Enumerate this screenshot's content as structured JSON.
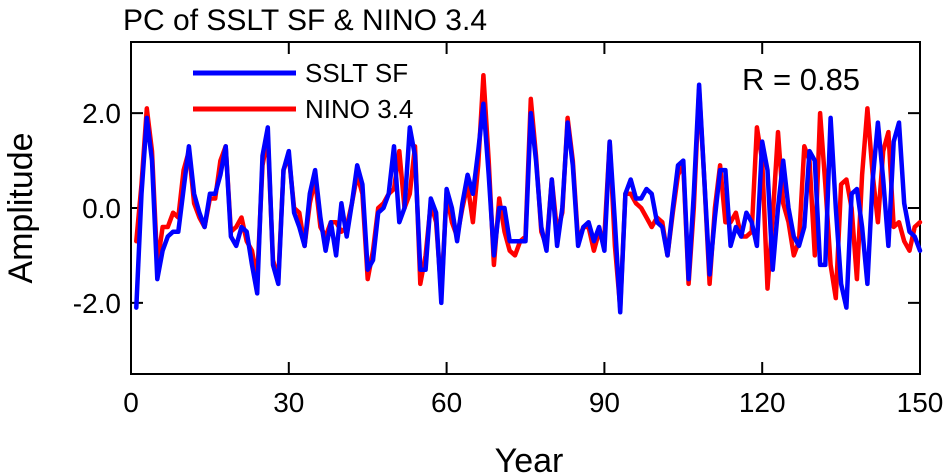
{
  "chart_data": {
    "type": "line",
    "title": "PC of SSLT SF & NINO 3.4",
    "xlabel": "Year",
    "ylabel": "Amplitude",
    "xlim": [
      0,
      150
    ],
    "ylim": [
      -3.5,
      3.5
    ],
    "xticks": [
      0,
      30,
      60,
      90,
      120,
      150
    ],
    "xtick_labels": [
      "0",
      "30",
      "60",
      "90",
      "120",
      "150"
    ],
    "yticks": [
      -2,
      0,
      2
    ],
    "ytick_labels": [
      "-2.0",
      "0.0",
      "2.0"
    ],
    "grid": false,
    "legend_position": "top-left",
    "annotation": "R = 0.85",
    "x": [
      1,
      2,
      3,
      4,
      5,
      6,
      7,
      8,
      9,
      10,
      11,
      12,
      13,
      14,
      15,
      16,
      17,
      18,
      19,
      20,
      21,
      22,
      23,
      24,
      25,
      26,
      27,
      28,
      29,
      30,
      31,
      32,
      33,
      34,
      35,
      36,
      37,
      38,
      39,
      40,
      41,
      42,
      43,
      44,
      45,
      46,
      47,
      48,
      49,
      50,
      51,
      52,
      53,
      54,
      55,
      56,
      57,
      58,
      59,
      60,
      61,
      62,
      63,
      64,
      65,
      66,
      67,
      68,
      69,
      70,
      71,
      72,
      73,
      74,
      75,
      76,
      77,
      78,
      79,
      80,
      81,
      82,
      83,
      84,
      85,
      86,
      87,
      88,
      89,
      90,
      91,
      92,
      93,
      94,
      95,
      96,
      97,
      98,
      99,
      100,
      101,
      102,
      103,
      104,
      105,
      106,
      107,
      108,
      109,
      110,
      111,
      112,
      113,
      114,
      115,
      116,
      117,
      118,
      119,
      120,
      121,
      122,
      123,
      124,
      125,
      126,
      127,
      128,
      129,
      130,
      131,
      132,
      133,
      134,
      135,
      136,
      137,
      138,
      139,
      140,
      141,
      142,
      143,
      144,
      145,
      146,
      147,
      148,
      149,
      150
    ],
    "series": [
      {
        "name": "NINO 3.4",
        "color": "#ff0000",
        "values": [
          -0.7,
          0.5,
          2.1,
          1.2,
          -1.2,
          -0.4,
          -0.4,
          -0.1,
          -0.2,
          0.8,
          1.2,
          0.1,
          -0.2,
          -0.4,
          0.2,
          0.2,
          1.0,
          1.3,
          -0.5,
          -0.4,
          -0.2,
          -0.7,
          -0.9,
          -1.5,
          0.9,
          1.5,
          -1.1,
          -1.5,
          0.8,
          1.1,
          0.0,
          -0.1,
          -0.8,
          0.1,
          0.6,
          -0.4,
          -0.6,
          -0.3,
          -0.3,
          -0.5,
          -0.4,
          0.1,
          0.7,
          0.3,
          -1.5,
          -0.9,
          0.0,
          0.1,
          0.3,
          0.4,
          1.2,
          0.0,
          0.3,
          1.3,
          -1.6,
          -1.0,
          0.1,
          -0.3,
          -1.8,
          0.3,
          -0.3,
          -0.6,
          0.0,
          0.5,
          -0.3,
          0.9,
          2.8,
          1.0,
          -1.2,
          0.2,
          -0.5,
          -0.9,
          -1.0,
          -0.7,
          -0.6,
          2.3,
          1.1,
          -0.5,
          -0.8,
          0.6,
          -0.5,
          -0.1,
          1.9,
          1.0,
          -0.7,
          -0.4,
          -0.4,
          -0.9,
          -0.5,
          -0.6,
          1.4,
          -0.8,
          -2.1,
          0.3,
          0.3,
          0.1,
          0.0,
          -0.2,
          -0.4,
          -0.2,
          -0.3,
          -1.0,
          -0.1,
          0.7,
          0.9,
          -1.6,
          0.0,
          2.5,
          0.6,
          -1.6,
          0.0,
          0.9,
          -0.3,
          -0.3,
          -0.1,
          -0.6,
          -0.6,
          -0.5,
          1.7,
          1.0,
          -1.7,
          -0.2,
          1.6,
          0.1,
          -0.3,
          -1.0,
          -0.7,
          1.3,
          1.0,
          -1.0,
          2.0,
          0.5,
          -1.2,
          -1.9,
          0.5,
          0.6,
          0.0,
          -1.5,
          0.7,
          2.1,
          0.7,
          -0.3,
          1.2,
          1.6,
          -0.4,
          -0.3,
          -0.7,
          -0.9,
          -0.4,
          -0.3
        ]
      },
      {
        "name": "SSLT SF",
        "color": "#0000ff",
        "values": [
          -2.1,
          0.3,
          1.9,
          1.0,
          -1.5,
          -0.9,
          -0.6,
          -0.5,
          -0.5,
          0.4,
          1.3,
          0.3,
          -0.1,
          -0.4,
          0.3,
          0.3,
          0.7,
          1.3,
          -0.6,
          -0.8,
          -0.4,
          -0.5,
          -1.2,
          -1.8,
          1.1,
          1.7,
          -1.2,
          -1.6,
          0.8,
          1.2,
          -0.1,
          -0.4,
          -0.8,
          0.3,
          0.8,
          -0.2,
          -0.9,
          -0.3,
          -1.0,
          0.1,
          -0.6,
          0.1,
          0.9,
          0.5,
          -1.3,
          -1.1,
          -0.1,
          0.0,
          0.3,
          1.3,
          -0.3,
          0.0,
          1.7,
          1.1,
          -1.3,
          -1.3,
          0.2,
          -0.1,
          -2.0,
          0.4,
          0.0,
          -0.7,
          0.1,
          0.7,
          0.3,
          1.2,
          2.2,
          0.7,
          -1.0,
          0.0,
          0.0,
          -0.7,
          -0.7,
          -0.7,
          -0.7,
          2.0,
          1.0,
          -0.4,
          -0.9,
          0.6,
          -0.8,
          0.0,
          1.8,
          0.9,
          -0.8,
          -0.4,
          -0.3,
          -0.7,
          -0.4,
          -0.9,
          1.4,
          -0.3,
          -2.2,
          0.3,
          0.6,
          0.2,
          0.2,
          0.4,
          0.3,
          -0.3,
          -0.4,
          -1.0,
          0.0,
          0.9,
          1.0,
          -1.5,
          0.3,
          2.6,
          0.6,
          -1.4,
          -0.2,
          0.8,
          0.8,
          -0.8,
          -0.4,
          -0.6,
          -0.1,
          -0.3,
          -0.8,
          1.4,
          0.8,
          -1.3,
          0.0,
          1.0,
          0.0,
          -0.6,
          -0.8,
          -0.4,
          1.2,
          1.0,
          -1.2,
          -1.2,
          1.9,
          0.0,
          -1.6,
          -2.1,
          0.3,
          0.4,
          -0.4,
          -1.6,
          0.6,
          1.8,
          0.6,
          -0.8,
          1.4,
          1.8,
          0.1,
          -0.5,
          -0.6,
          -0.9
        ]
      }
    ]
  }
}
